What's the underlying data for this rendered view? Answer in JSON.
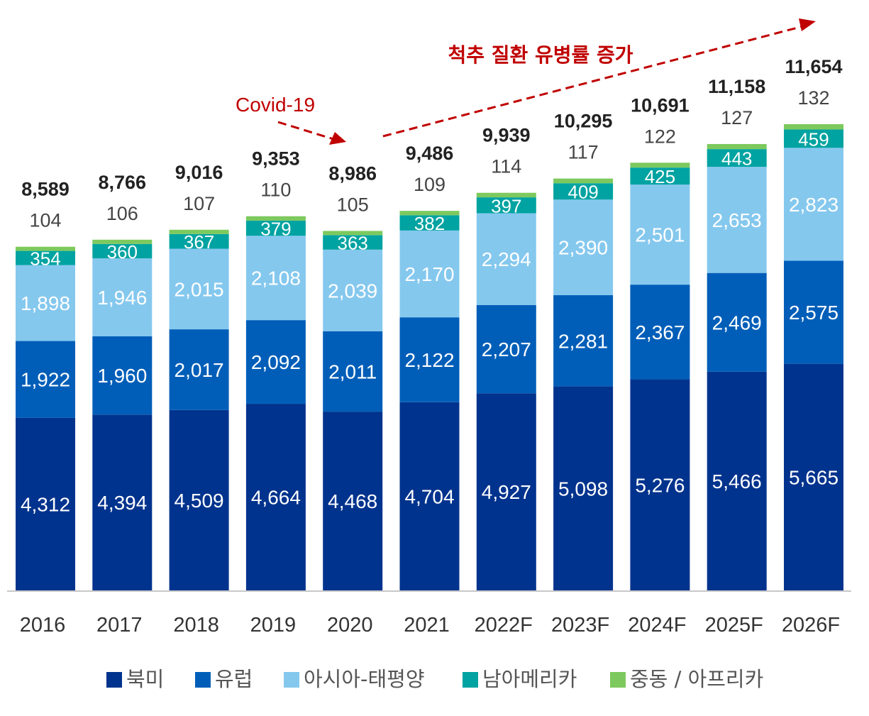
{
  "chart_data": {
    "type": "bar",
    "stacked": true,
    "categories": [
      "2016",
      "2017",
      "2018",
      "2019",
      "2020",
      "2021",
      "2022F",
      "2023F",
      "2024F",
      "2025F",
      "2026F"
    ],
    "series": [
      {
        "name": "북미",
        "color": "#00338d",
        "values": [
          4312,
          4394,
          4509,
          4664,
          4468,
          4704,
          4927,
          5098,
          5276,
          5466,
          5665
        ]
      },
      {
        "name": "유럽",
        "color": "#005eb8",
        "values": [
          1922,
          1960,
          2017,
          2092,
          2011,
          2122,
          2207,
          2281,
          2367,
          2469,
          2575
        ]
      },
      {
        "name": "아시아-태평양",
        "color": "#85c8ee",
        "values": [
          1898,
          1946,
          2015,
          2108,
          2039,
          2170,
          2294,
          2390,
          2501,
          2653,
          2823
        ]
      },
      {
        "name": "남아메리카",
        "color": "#00a3a1",
        "values": [
          354,
          360,
          367,
          379,
          363,
          382,
          397,
          409,
          425,
          443,
          459
        ]
      },
      {
        "name": "중동 / 아프리카",
        "color": "#7dc95e",
        "values": [
          104,
          106,
          107,
          110,
          105,
          109,
          114,
          117,
          122,
          127,
          132
        ]
      }
    ],
    "totals": [
      "8,589",
      "8,766",
      "9,016",
      "9,353",
      "8,986",
      "9,486",
      "9,939",
      "10,295",
      "10,691",
      "11,158",
      "11,654"
    ],
    "legend": "bottom",
    "grid": false,
    "annotations": [
      {
        "text": "Covid-19",
        "color": "#c00000"
      },
      {
        "text": "척추 질환 유병률 증가",
        "color": "#c00000"
      }
    ]
  }
}
